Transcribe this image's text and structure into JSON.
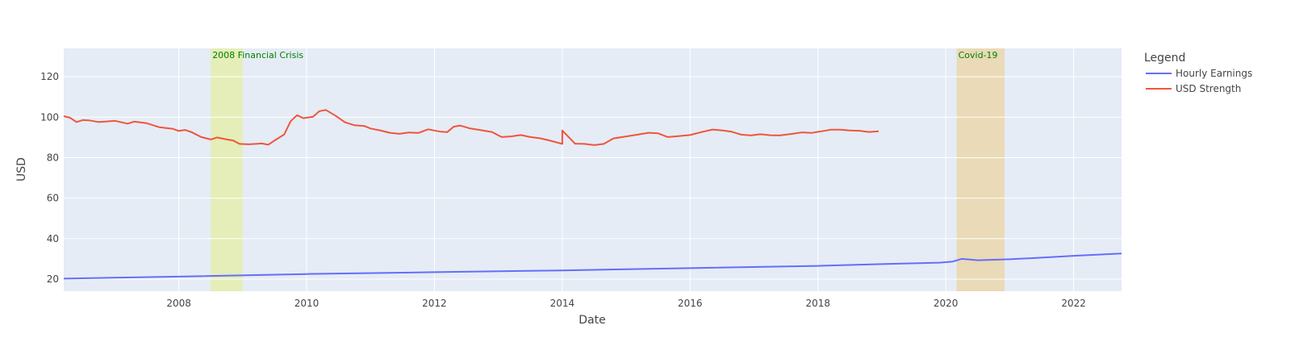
{
  "chart_data": {
    "type": "line",
    "xlabel": "Date",
    "ylabel": "USD",
    "xlim": [
      2006.2,
      2022.75
    ],
    "ylim": [
      14,
      134
    ],
    "x_ticks": [
      2008,
      2010,
      2012,
      2014,
      2016,
      2018,
      2020,
      2022
    ],
    "y_ticks": [
      20,
      40,
      60,
      80,
      100,
      120
    ],
    "grid": true,
    "plot_background": "#e5ecf6",
    "legend": {
      "title": "Legend",
      "placement": "right",
      "entries": [
        "Hourly Earnings",
        "USD Strength"
      ]
    },
    "annotations": [
      {
        "label": "2008 Financial Crisis",
        "x_start": 2008.5,
        "x_end": 2009.0,
        "color": "#e6f07a"
      },
      {
        "label": "Covid-19",
        "x_start": 2020.17,
        "x_end": 2020.92,
        "color": "#f0c878"
      }
    ],
    "series": [
      {
        "name": "Hourly Earnings",
        "color": "#636efa",
        "points": [
          [
            2006.2,
            20.2
          ],
          [
            2008.0,
            21.2
          ],
          [
            2010.0,
            22.5
          ],
          [
            2012.0,
            23.4
          ],
          [
            2014.0,
            24.3
          ],
          [
            2016.0,
            25.4
          ],
          [
            2018.0,
            26.5
          ],
          [
            2019.0,
            27.4
          ],
          [
            2019.9,
            28.1
          ],
          [
            2020.1,
            28.6
          ],
          [
            2020.25,
            30.0
          ],
          [
            2020.5,
            29.3
          ],
          [
            2021.0,
            29.8
          ],
          [
            2021.5,
            30.6
          ],
          [
            2022.0,
            31.5
          ],
          [
            2022.75,
            32.6
          ]
        ]
      },
      {
        "name": "USD Strength",
        "color": "#ef553b",
        "points": [
          [
            2006.2,
            100.5
          ],
          [
            2006.3,
            99.7
          ],
          [
            2006.4,
            97.6
          ],
          [
            2006.5,
            98.6
          ],
          [
            2006.6,
            98.4
          ],
          [
            2006.75,
            97.6
          ],
          [
            2007.0,
            98.2
          ],
          [
            2007.2,
            96.8
          ],
          [
            2007.3,
            97.8
          ],
          [
            2007.5,
            97.0
          ],
          [
            2007.7,
            95.0
          ],
          [
            2007.9,
            94.3
          ],
          [
            2008.0,
            93.2
          ],
          [
            2008.1,
            93.7
          ],
          [
            2008.2,
            92.6
          ],
          [
            2008.35,
            90.2
          ],
          [
            2008.5,
            89.0
          ],
          [
            2008.6,
            90.0
          ],
          [
            2008.75,
            89.0
          ],
          [
            2008.85,
            88.5
          ],
          [
            2008.95,
            86.8
          ],
          [
            2009.1,
            86.6
          ],
          [
            2009.3,
            87.0
          ],
          [
            2009.4,
            86.4
          ],
          [
            2009.5,
            88.5
          ],
          [
            2009.65,
            91.5
          ],
          [
            2009.75,
            98.0
          ],
          [
            2009.85,
            101.0
          ],
          [
            2009.95,
            99.5
          ],
          [
            2010.1,
            100.2
          ],
          [
            2010.2,
            103.0
          ],
          [
            2010.3,
            103.6
          ],
          [
            2010.45,
            100.8
          ],
          [
            2010.6,
            97.5
          ],
          [
            2010.75,
            96.0
          ],
          [
            2010.9,
            95.7
          ],
          [
            2011.0,
            94.4
          ],
          [
            2011.15,
            93.5
          ],
          [
            2011.3,
            92.3
          ],
          [
            2011.45,
            91.8
          ],
          [
            2011.6,
            92.4
          ],
          [
            2011.75,
            92.2
          ],
          [
            2011.9,
            94.0
          ],
          [
            2012.1,
            92.8
          ],
          [
            2012.2,
            92.6
          ],
          [
            2012.3,
            95.3
          ],
          [
            2012.4,
            95.9
          ],
          [
            2012.55,
            94.5
          ],
          [
            2012.75,
            93.5
          ],
          [
            2012.9,
            92.7
          ],
          [
            2013.05,
            90.2
          ],
          [
            2013.2,
            90.5
          ],
          [
            2013.35,
            91.2
          ],
          [
            2013.5,
            90.2
          ],
          [
            2013.65,
            89.6
          ],
          [
            2013.8,
            88.5
          ],
          [
            2014.0,
            86.8
          ],
          [
            2014.2,
            86.9
          ],
          [
            2014.35,
            86.8
          ],
          [
            2014.5,
            86.2
          ],
          [
            2014.65,
            86.8
          ],
          [
            2014.8,
            89.5
          ],
          [
            2015.0,
            90.5
          ],
          [
            2015.2,
            91.5
          ],
          [
            2015.35,
            92.3
          ],
          [
            2015.5,
            92.0
          ],
          [
            2015.65,
            90.2
          ],
          [
            2015.8,
            90.6
          ],
          [
            2016.0,
            91.2
          ],
          [
            2016.2,
            92.8
          ],
          [
            2016.35,
            93.9
          ],
          [
            2016.5,
            93.5
          ],
          [
            2016.65,
            92.8
          ],
          [
            2016.8,
            91.4
          ],
          [
            2016.95,
            91.0
          ],
          [
            2017.1,
            91.6
          ],
          [
            2017.25,
            91.1
          ],
          [
            2017.4,
            91.0
          ],
          [
            2017.6,
            91.8
          ],
          [
            2017.75,
            92.5
          ],
          [
            2017.9,
            92.2
          ],
          [
            2018.05,
            93.0
          ],
          [
            2018.2,
            93.8
          ],
          [
            2018.35,
            93.8
          ],
          [
            2018.5,
            93.4
          ],
          [
            2018.65,
            93.3
          ],
          [
            2018.8,
            92.7
          ],
          [
            2018.95,
            93.0
          ],
          [
            2014.0,
            93.4
          ]
        ]
      }
    ]
  }
}
